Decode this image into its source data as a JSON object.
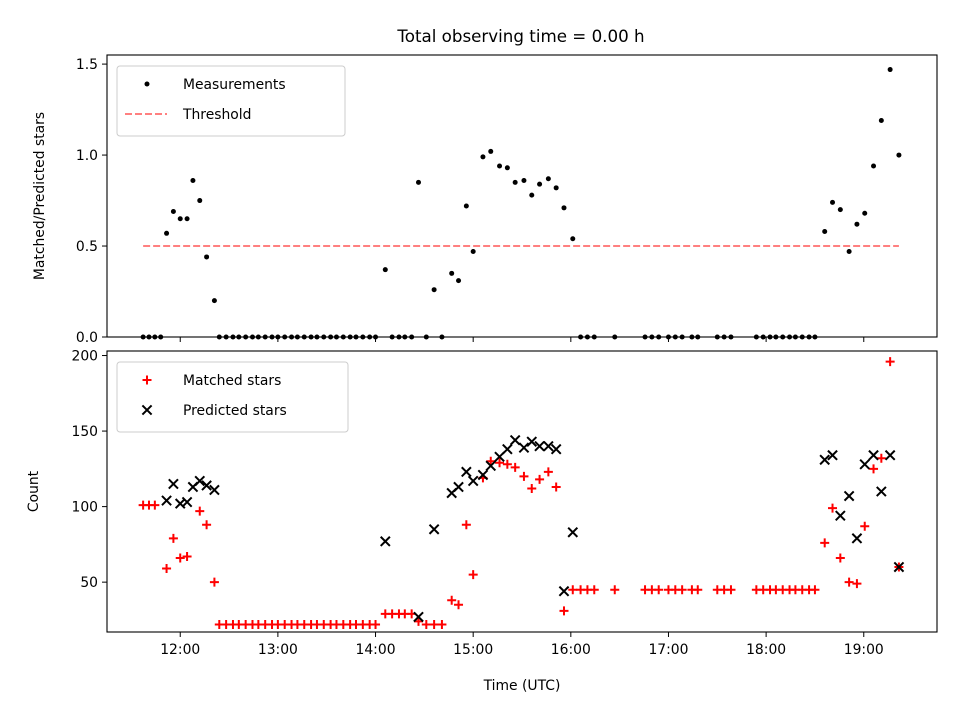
{
  "figure": {
    "title": "Total observing time = 0.00 h"
  },
  "chart_data": [
    {
      "type": "scatter",
      "ylabel": "Matched/Predicted stars",
      "ylim": [
        0,
        1.55
      ],
      "xlim": [
        11.25,
        19.75
      ],
      "yticks": [
        0.0,
        0.5,
        1.0,
        1.5
      ],
      "ytick_labels": [
        "0.0",
        "0.5",
        "1.0",
        "1.5"
      ],
      "grid": false,
      "legend": {
        "position": "upper-left"
      },
      "threshold": {
        "name": "Threshold",
        "value": 0.5,
        "x_range": [
          11.62,
          19.36
        ],
        "color": "#ff8080"
      },
      "series": [
        {
          "name": "Measurements",
          "marker": "dot",
          "color": "#000000",
          "points": [
            [
              11.62,
              0
            ],
            [
              11.68,
              0
            ],
            [
              11.74,
              0
            ],
            [
              11.8,
              0
            ],
            [
              11.86,
              0.57
            ],
            [
              11.93,
              0.69
            ],
            [
              12.0,
              0.65
            ],
            [
              12.07,
              0.65
            ],
            [
              12.13,
              0.86
            ],
            [
              12.2,
              0.75
            ],
            [
              12.27,
              0.44
            ],
            [
              12.35,
              0.2
            ],
            [
              12.4,
              0
            ],
            [
              12.47,
              0
            ],
            [
              12.54,
              0
            ],
            [
              12.6,
              0
            ],
            [
              12.67,
              0
            ],
            [
              12.74,
              0
            ],
            [
              12.8,
              0
            ],
            [
              12.87,
              0
            ],
            [
              12.94,
              0
            ],
            [
              13.0,
              0
            ],
            [
              13.07,
              0
            ],
            [
              13.14,
              0
            ],
            [
              13.2,
              0
            ],
            [
              13.27,
              0
            ],
            [
              13.34,
              0
            ],
            [
              13.4,
              0
            ],
            [
              13.47,
              0
            ],
            [
              13.54,
              0
            ],
            [
              13.6,
              0
            ],
            [
              13.67,
              0
            ],
            [
              13.74,
              0
            ],
            [
              13.8,
              0
            ],
            [
              13.87,
              0
            ],
            [
              13.94,
              0
            ],
            [
              14.0,
              0
            ],
            [
              14.1,
              0.37
            ],
            [
              14.17,
              0
            ],
            [
              14.24,
              0
            ],
            [
              14.3,
              0
            ],
            [
              14.37,
              0
            ],
            [
              14.44,
              0.85
            ],
            [
              14.52,
              0
            ],
            [
              14.6,
              0.26
            ],
            [
              14.68,
              0
            ],
            [
              14.78,
              0.35
            ],
            [
              14.85,
              0.31
            ],
            [
              14.93,
              0.72
            ],
            [
              15.0,
              0.47
            ],
            [
              15.1,
              0.99
            ],
            [
              15.18,
              1.02
            ],
            [
              15.27,
              0.94
            ],
            [
              15.35,
              0.93
            ],
            [
              15.43,
              0.85
            ],
            [
              15.52,
              0.86
            ],
            [
              15.6,
              0.78
            ],
            [
              15.68,
              0.84
            ],
            [
              15.77,
              0.87
            ],
            [
              15.85,
              0.82
            ],
            [
              15.93,
              0.71
            ],
            [
              16.02,
              0.54
            ],
            [
              16.1,
              0
            ],
            [
              16.17,
              0
            ],
            [
              16.24,
              0
            ],
            [
              16.45,
              0
            ],
            [
              16.76,
              0
            ],
            [
              16.83,
              0
            ],
            [
              16.9,
              0
            ],
            [
              17.0,
              0
            ],
            [
              17.07,
              0
            ],
            [
              17.14,
              0
            ],
            [
              17.24,
              0
            ],
            [
              17.3,
              0
            ],
            [
              17.5,
              0
            ],
            [
              17.57,
              0
            ],
            [
              17.64,
              0
            ],
            [
              17.9,
              0
            ],
            [
              17.97,
              0
            ],
            [
              18.04,
              0
            ],
            [
              18.1,
              0
            ],
            [
              18.17,
              0
            ],
            [
              18.24,
              0
            ],
            [
              18.3,
              0
            ],
            [
              18.37,
              0
            ],
            [
              18.44,
              0
            ],
            [
              18.5,
              0
            ],
            [
              18.6,
              0.58
            ],
            [
              18.68,
              0.74
            ],
            [
              18.76,
              0.7
            ],
            [
              18.85,
              0.47
            ],
            [
              18.93,
              0.62
            ],
            [
              19.01,
              0.68
            ],
            [
              19.1,
              0.94
            ],
            [
              19.18,
              1.19
            ],
            [
              19.27,
              1.47
            ],
            [
              19.36,
              1.0
            ]
          ]
        }
      ]
    },
    {
      "type": "scatter",
      "xlabel": "Time (UTC)",
      "ylabel": "Count",
      "xlim": [
        11.25,
        19.75
      ],
      "ylim": [
        17,
        203
      ],
      "xticks": [
        12,
        13,
        14,
        15,
        16,
        17,
        18,
        19
      ],
      "xtick_labels": [
        "12:00",
        "13:00",
        "14:00",
        "15:00",
        "16:00",
        "17:00",
        "18:00",
        "19:00"
      ],
      "yticks": [
        50,
        100,
        150,
        200
      ],
      "ytick_labels": [
        "50",
        "100",
        "150",
        "200"
      ],
      "grid": false,
      "legend": {
        "position": "upper-left"
      },
      "series": [
        {
          "name": "Matched stars",
          "marker": "plus",
          "color": "#ff0000",
          "points": [
            [
              11.62,
              101
            ],
            [
              11.68,
              101
            ],
            [
              11.74,
              101
            ],
            [
              11.86,
              59
            ],
            [
              11.93,
              79
            ],
            [
              12.0,
              66
            ],
            [
              12.07,
              67
            ],
            [
              12.2,
              97
            ],
            [
              12.27,
              88
            ],
            [
              12.35,
              50
            ],
            [
              12.4,
              22
            ],
            [
              12.47,
              22
            ],
            [
              12.54,
              22
            ],
            [
              12.6,
              22
            ],
            [
              12.67,
              22
            ],
            [
              12.74,
              22
            ],
            [
              12.8,
              22
            ],
            [
              12.87,
              22
            ],
            [
              12.94,
              22
            ],
            [
              13.0,
              22
            ],
            [
              13.07,
              22
            ],
            [
              13.14,
              22
            ],
            [
              13.2,
              22
            ],
            [
              13.27,
              22
            ],
            [
              13.34,
              22
            ],
            [
              13.4,
              22
            ],
            [
              13.47,
              22
            ],
            [
              13.54,
              22
            ],
            [
              13.6,
              22
            ],
            [
              13.67,
              22
            ],
            [
              13.74,
              22
            ],
            [
              13.8,
              22
            ],
            [
              13.87,
              22
            ],
            [
              13.94,
              22
            ],
            [
              14.0,
              22
            ],
            [
              14.1,
              29
            ],
            [
              14.17,
              29
            ],
            [
              14.24,
              29
            ],
            [
              14.3,
              29
            ],
            [
              14.37,
              29
            ],
            [
              14.44,
              24
            ],
            [
              14.52,
              22
            ],
            [
              14.6,
              22
            ],
            [
              14.68,
              22
            ],
            [
              14.78,
              38
            ],
            [
              14.85,
              35
            ],
            [
              14.93,
              88
            ],
            [
              15.0,
              55
            ],
            [
              15.1,
              119
            ],
            [
              15.18,
              130
            ],
            [
              15.27,
              129
            ],
            [
              15.35,
              128
            ],
            [
              15.43,
              126
            ],
            [
              15.52,
              120
            ],
            [
              15.6,
              112
            ],
            [
              15.68,
              118
            ],
            [
              15.77,
              123
            ],
            [
              15.85,
              113
            ],
            [
              15.93,
              31
            ],
            [
              16.02,
              45
            ],
            [
              16.1,
              45
            ],
            [
              16.17,
              45
            ],
            [
              16.24,
              45
            ],
            [
              16.45,
              45
            ],
            [
              16.76,
              45
            ],
            [
              16.83,
              45
            ],
            [
              16.9,
              45
            ],
            [
              17.0,
              45
            ],
            [
              17.07,
              45
            ],
            [
              17.14,
              45
            ],
            [
              17.24,
              45
            ],
            [
              17.3,
              45
            ],
            [
              17.5,
              45
            ],
            [
              17.57,
              45
            ],
            [
              17.64,
              45
            ],
            [
              17.9,
              45
            ],
            [
              17.97,
              45
            ],
            [
              18.04,
              45
            ],
            [
              18.1,
              45
            ],
            [
              18.17,
              45
            ],
            [
              18.24,
              45
            ],
            [
              18.3,
              45
            ],
            [
              18.37,
              45
            ],
            [
              18.44,
              45
            ],
            [
              18.5,
              45
            ],
            [
              18.6,
              76
            ],
            [
              18.68,
              99
            ],
            [
              18.76,
              66
            ],
            [
              18.85,
              50
            ],
            [
              18.93,
              49
            ],
            [
              19.01,
              87
            ],
            [
              19.1,
              125
            ],
            [
              19.18,
              132
            ],
            [
              19.27,
              196
            ],
            [
              19.36,
              60
            ]
          ]
        },
        {
          "name": "Predicted stars",
          "marker": "x",
          "color": "#000000",
          "points": [
            [
              11.86,
              104
            ],
            [
              11.93,
              115
            ],
            [
              12.0,
              102
            ],
            [
              12.07,
              103
            ],
            [
              12.13,
              113
            ],
            [
              12.2,
              117
            ],
            [
              12.27,
              114
            ],
            [
              12.35,
              111
            ],
            [
              14.1,
              77
            ],
            [
              14.44,
              27
            ],
            [
              14.6,
              85
            ],
            [
              14.78,
              109
            ],
            [
              14.85,
              113
            ],
            [
              14.93,
              123
            ],
            [
              15.0,
              117
            ],
            [
              15.1,
              121
            ],
            [
              15.18,
              127
            ],
            [
              15.27,
              133
            ],
            [
              15.35,
              138
            ],
            [
              15.43,
              144
            ],
            [
              15.52,
              139
            ],
            [
              15.6,
              143
            ],
            [
              15.68,
              140
            ],
            [
              15.77,
              140
            ],
            [
              15.85,
              138
            ],
            [
              15.93,
              44
            ],
            [
              16.02,
              83
            ],
            [
              18.6,
              131
            ],
            [
              18.68,
              134
            ],
            [
              18.76,
              94
            ],
            [
              18.85,
              107
            ],
            [
              18.93,
              79
            ],
            [
              19.01,
              128
            ],
            [
              19.1,
              134
            ],
            [
              19.18,
              110
            ],
            [
              19.27,
              134
            ],
            [
              19.36,
              60
            ]
          ]
        }
      ]
    }
  ]
}
